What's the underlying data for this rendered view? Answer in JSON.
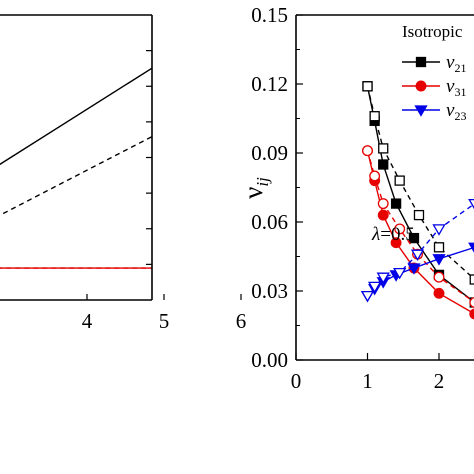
{
  "chart_data": [
    {
      "type": "line",
      "title": "",
      "xlabel": "",
      "ylabel": "",
      "xlim": [
        2.6,
        6
      ],
      "ylim": [
        0,
        1
      ],
      "x_ticks": [
        4,
        5,
        6
      ],
      "x_tick_labels": [
        "4",
        "5",
        "6"
      ],
      "y_ticks": [
        0.125,
        0.25,
        0.375,
        0.5,
        0.625,
        0.75,
        0.875
      ],
      "grid": false,
      "legend": "none",
      "series": [
        {
          "color": "#000000",
          "marker": "square-filled",
          "dash": "solid",
          "points": [
            [
              2.6,
              0.43
            ],
            [
              5,
              0.84
            ]
          ]
        },
        {
          "color": "#000000",
          "marker": "circle-open",
          "dash": "dashed",
          "points": [
            [
              2.6,
              0.26
            ],
            [
              5,
              0.595
            ]
          ]
        },
        {
          "color": "#e60000",
          "marker": "circle-filled",
          "dash": "solid",
          "points": [
            [
              2.6,
              0.112
            ],
            [
              5,
              0.112
            ]
          ]
        },
        {
          "color": "#e60000",
          "marker": "circle-open",
          "dash": "dashed",
          "points": [
            [
              2.6,
              0.112
            ],
            [
              5,
              0.112
            ]
          ]
        }
      ]
    },
    {
      "type": "line",
      "title": "",
      "xlabel": "",
      "ylabel": "v_ij",
      "ylabel_main": "ν",
      "ylabel_sub": "ij",
      "xlim": [
        0,
        2.8
      ],
      "ylim": [
        0,
        0.15
      ],
      "x_ticks": [
        0,
        1,
        2
      ],
      "x_tick_labels": [
        "0",
        "1",
        "2"
      ],
      "y_ticks": [
        0.0,
        0.03,
        0.06,
        0.09,
        0.12,
        0.15
      ],
      "y_tick_labels": [
        "0.00",
        "0.03",
        "0.06",
        "0.09",
        "0.12",
        "0.15"
      ],
      "grid": false,
      "legend": "top-right",
      "legend_title": "Isotropic",
      "annotation": {
        "lambda_symbol": "λ",
        "lambda_text": "=0.5",
        "x": 1.05,
        "y": 0.083
      },
      "series": [
        {
          "legend": "ν21",
          "legend_main": "ν",
          "legend_sub": "21",
          "color": "#000000",
          "marker": "square-filled",
          "dash": "solid",
          "points": [
            [
              1.0,
              0.119
            ],
            [
              1.1,
              0.104
            ],
            [
              1.22,
              0.085
            ],
            [
              1.4,
              0.068
            ],
            [
              1.65,
              0.053
            ],
            [
              2.0,
              0.037
            ],
            [
              2.5,
              0.025
            ],
            [
              2.8,
              0.02
            ]
          ]
        },
        {
          "color": "#000000",
          "marker": "square-open",
          "dash": "dashed",
          "points": [
            [
              1.0,
              0.119
            ],
            [
              1.1,
              0.106
            ],
            [
              1.22,
              0.092
            ],
            [
              1.45,
              0.078
            ],
            [
              1.72,
              0.063
            ],
            [
              2.0,
              0.049
            ],
            [
              2.5,
              0.035
            ],
            [
              2.8,
              0.03
            ]
          ]
        },
        {
          "legend": "ν31",
          "legend_main": "ν",
          "legend_sub": "31",
          "color": "#e60000",
          "marker": "circle-filled",
          "dash": "solid",
          "points": [
            [
              1.0,
              0.091
            ],
            [
              1.1,
              0.078
            ],
            [
              1.22,
              0.063
            ],
            [
              1.4,
              0.051
            ],
            [
              1.65,
              0.04
            ],
            [
              2.0,
              0.029
            ],
            [
              2.5,
              0.02
            ],
            [
              2.8,
              0.015
            ]
          ]
        },
        {
          "color": "#e60000",
          "marker": "circle-open",
          "dash": "dashed",
          "points": [
            [
              1.0,
              0.091
            ],
            [
              1.1,
              0.08
            ],
            [
              1.22,
              0.068
            ],
            [
              1.45,
              0.057
            ],
            [
              1.7,
              0.046
            ],
            [
              2.0,
              0.036
            ],
            [
              2.5,
              0.025
            ],
            [
              2.8,
              0.02
            ]
          ]
        },
        {
          "legend": "ν23",
          "legend_main": "ν",
          "legend_sub": "23",
          "color": "#0000e6",
          "marker": "triangle-down-filled",
          "dash": "solid",
          "points": [
            [
              1.0,
              0.028
            ],
            [
              1.1,
              0.031
            ],
            [
              1.22,
              0.034
            ],
            [
              1.4,
              0.037
            ],
            [
              1.65,
              0.04
            ],
            [
              2.0,
              0.044
            ],
            [
              2.5,
              0.049
            ],
            [
              2.8,
              0.052
            ]
          ]
        },
        {
          "color": "#0000e6",
          "marker": "triangle-down-open",
          "dash": "dashed",
          "points": [
            [
              1.0,
              0.028
            ],
            [
              1.1,
              0.032
            ],
            [
              1.22,
              0.036
            ],
            [
              1.45,
              0.038
            ],
            [
              1.7,
              0.046
            ],
            [
              2.0,
              0.057
            ],
            [
              2.5,
              0.068
            ],
            [
              2.8,
              0.072
            ]
          ]
        }
      ]
    }
  ]
}
